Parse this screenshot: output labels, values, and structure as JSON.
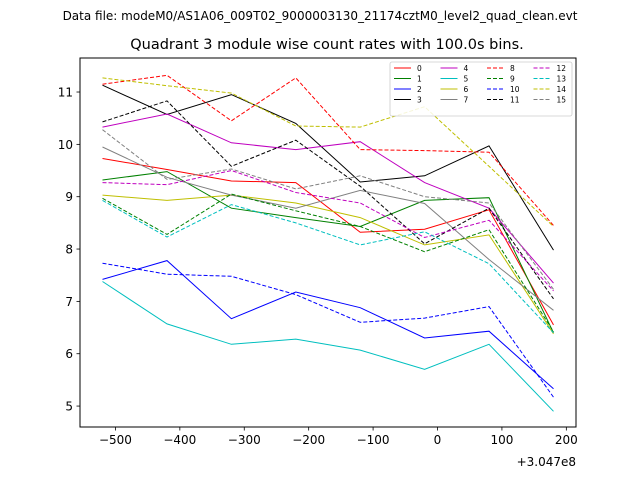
{
  "chart_data": {
    "type": "line",
    "suptitle": "Data file: modeM0/AS1A06_009T02_9000003130_21174cztM0_level2_quad_clean.evt",
    "title": "Quadrant 3 module wise count rates with 100.0s bins.",
    "xlabel": "",
    "ylabel": "",
    "x_offset_label": "+3.047e8",
    "xlim": [
      -555,
      215
    ],
    "ylim": [
      4.6,
      11.65
    ],
    "xticks": [
      -500,
      -400,
      -300,
      -200,
      -100,
      0,
      100,
      200
    ],
    "xtick_labels": [
      "−500",
      "−400",
      "−300",
      "−200",
      "−100",
      "0",
      "100",
      "200"
    ],
    "yticks": [
      5,
      6,
      7,
      8,
      9,
      10,
      11
    ],
    "yticks_labels": [
      "5",
      "6",
      "7",
      "8",
      "9",
      "10",
      "11"
    ],
    "x": [
      -520,
      -420,
      -320,
      -220,
      -120,
      -20,
      80,
      180
    ],
    "legend_position": "top-right",
    "series": [
      {
        "name": "0",
        "color": "#ff0000",
        "dash": "solid",
        "values": [
          9.73,
          9.52,
          9.3,
          9.27,
          8.32,
          8.38,
          8.75,
          6.55
        ]
      },
      {
        "name": "1",
        "color": "#008000",
        "dash": "solid",
        "values": [
          9.32,
          9.48,
          8.78,
          8.6,
          8.43,
          8.93,
          8.98,
          6.4
        ]
      },
      {
        "name": "2",
        "color": "#0000ff",
        "dash": "solid",
        "values": [
          7.42,
          7.78,
          6.67,
          7.18,
          6.88,
          6.3,
          6.43,
          5.33
        ]
      },
      {
        "name": "3",
        "color": "#000000",
        "dash": "solid",
        "values": [
          11.13,
          10.57,
          10.95,
          10.4,
          9.28,
          9.4,
          9.97,
          7.98
        ]
      },
      {
        "name": "4",
        "color": "#bf00bf",
        "dash": "solid",
        "values": [
          10.33,
          10.58,
          10.03,
          9.9,
          10.05,
          9.27,
          8.78,
          7.35
        ]
      },
      {
        "name": "5",
        "color": "#00bfbf",
        "dash": "solid",
        "values": [
          7.38,
          6.57,
          6.18,
          6.28,
          6.07,
          5.7,
          6.18,
          4.9
        ]
      },
      {
        "name": "6",
        "color": "#bfbf00",
        "dash": "solid",
        "values": [
          9.03,
          8.93,
          9.03,
          8.88,
          8.6,
          8.08,
          8.27,
          6.38
        ]
      },
      {
        "name": "7",
        "color": "#808080",
        "dash": "solid",
        "values": [
          9.95,
          9.37,
          9.03,
          8.78,
          9.12,
          8.87,
          7.8,
          6.83
        ]
      },
      {
        "name": "8",
        "color": "#ff0000",
        "dash": "dashed",
        "values": [
          11.15,
          11.32,
          10.45,
          11.27,
          9.9,
          9.88,
          9.85,
          8.45
        ]
      },
      {
        "name": "9",
        "color": "#008000",
        "dash": "dashed",
        "values": [
          8.97,
          8.28,
          9.05,
          8.73,
          8.43,
          7.95,
          8.37,
          6.42
        ]
      },
      {
        "name": "10",
        "color": "#0000ff",
        "dash": "dashed",
        "values": [
          7.73,
          7.52,
          7.48,
          7.13,
          6.6,
          6.68,
          6.9,
          5.17
        ]
      },
      {
        "name": "11",
        "color": "#000000",
        "dash": "dashed",
        "values": [
          10.43,
          10.83,
          9.58,
          10.08,
          9.2,
          8.1,
          8.78,
          7.05
        ]
      },
      {
        "name": "12",
        "color": "#bf00bf",
        "dash": "dashed",
        "values": [
          9.27,
          9.23,
          9.5,
          9.08,
          8.88,
          8.22,
          8.55,
          7.2
        ]
      },
      {
        "name": "13",
        "color": "#00bfbf",
        "dash": "dashed",
        "values": [
          8.93,
          8.23,
          8.85,
          8.5,
          8.08,
          8.33,
          7.72,
          6.4
        ]
      },
      {
        "name": "14",
        "color": "#bfbf00",
        "dash": "dashed",
        "values": [
          11.27,
          11.12,
          10.98,
          10.35,
          10.33,
          10.72,
          9.58,
          8.43
        ]
      },
      {
        "name": "15",
        "color": "#808080",
        "dash": "dashed",
        "values": [
          10.28,
          9.33,
          9.53,
          9.15,
          9.4,
          9.0,
          8.88,
          7.23
        ]
      }
    ]
  }
}
